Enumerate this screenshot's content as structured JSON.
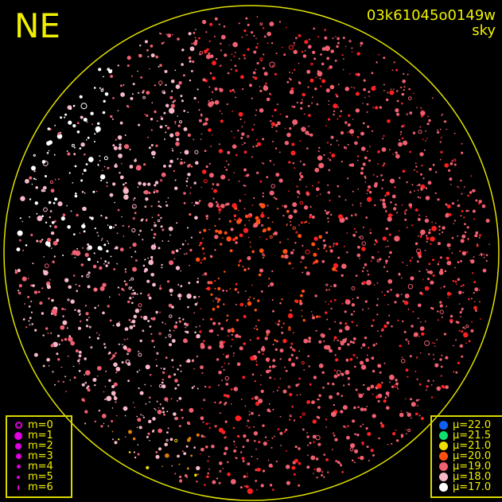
{
  "direction_label": "NE",
  "image_id": "03k61045o0149w",
  "image_type": "sky",
  "magnitude_legend": [
    {
      "label": "m=0",
      "color": "#e000e0",
      "style": "ring"
    },
    {
      "label": "m=1",
      "color": "#e000e0",
      "style": "filled"
    },
    {
      "label": "m=2",
      "color": "#e000e0",
      "style": "filled"
    },
    {
      "label": "m=3",
      "color": "#e000e0",
      "style": "filled"
    },
    {
      "label": "m=4",
      "color": "#e000e0",
      "style": "filled"
    },
    {
      "label": "m=5",
      "color": "#e000e0",
      "style": "filled"
    },
    {
      "label": "m=6",
      "color": "#e000e0",
      "style": "filled"
    }
  ],
  "surface_brightness_legend": [
    {
      "label": "μ=22.0",
      "color": "#1060f0"
    },
    {
      "label": "μ=21.5",
      "color": "#10e070"
    },
    {
      "label": "μ=21.0",
      "color": "#f0e000"
    },
    {
      "label": "μ=20.0",
      "color": "#ff5010"
    },
    {
      "label": "μ=19.0",
      "color": "#f06070"
    },
    {
      "label": "μ=18.0",
      "color": "#f8b8c8"
    },
    {
      "label": "μ=17.0",
      "color": "#ffffff"
    }
  ],
  "horizon_color": "#e0e000"
}
